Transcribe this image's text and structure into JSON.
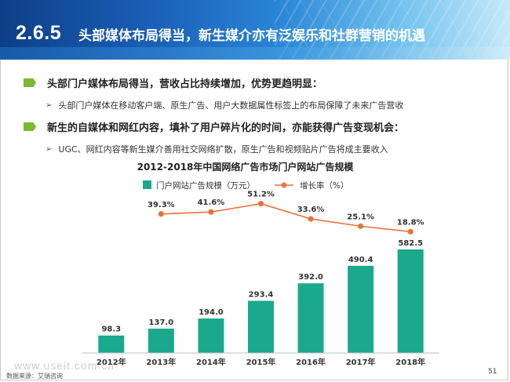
{
  "header": {
    "section_number": "2.6.5",
    "title": "头部媒体布局得当，新生媒介亦有泛娱乐和社群营销的机遇"
  },
  "bullets": [
    {
      "text": "头部门户媒体布局得当，营收占比持续增加，优势更趋明显：",
      "sub": "头部门户媒体在移动客户端、原生广告、用户大数据属性标签上的布局保障了未来广告营收"
    },
    {
      "text": "新生的自媒体和网红内容，填补了用户碎片化的时间，亦能获得广告变现机会：",
      "sub": "UGC、网红内容等新生媒介善用社交网络扩散，原生广告和视频贴片广告将成主要收入"
    }
  ],
  "chart_data": {
    "type": "bar",
    "title": "2012-2018年中国网络广告市场门户网站广告规模",
    "categories": [
      "2012年",
      "2013年",
      "2014年",
      "2015年",
      "2016年",
      "2017年",
      "2018年"
    ],
    "series": [
      {
        "name": "门户网站广告规模（万元）",
        "type": "bar",
        "color": "#1aa98c",
        "values": [
          98.3,
          137.0,
          194.0,
          293.4,
          392.0,
          490.4,
          582.5
        ],
        "labels": [
          "98.3",
          "137.0",
          "194.0",
          "293.4",
          "392.0",
          "490.4",
          "582.5"
        ]
      },
      {
        "name": "增长率（%）",
        "type": "line",
        "color": "#e8743b",
        "values": [
          null,
          39.3,
          41.6,
          51.2,
          33.6,
          25.1,
          18.8
        ],
        "labels": [
          "",
          "39.3%",
          "41.6%",
          "51.2%",
          "33.6%",
          "25.1%",
          "18.8%"
        ]
      }
    ],
    "legend_position": "top",
    "grid": false
  },
  "footer": {
    "source": "数据来源：艾瑞咨询",
    "page_number": "51",
    "watermark": "www.useit.com.cn"
  }
}
